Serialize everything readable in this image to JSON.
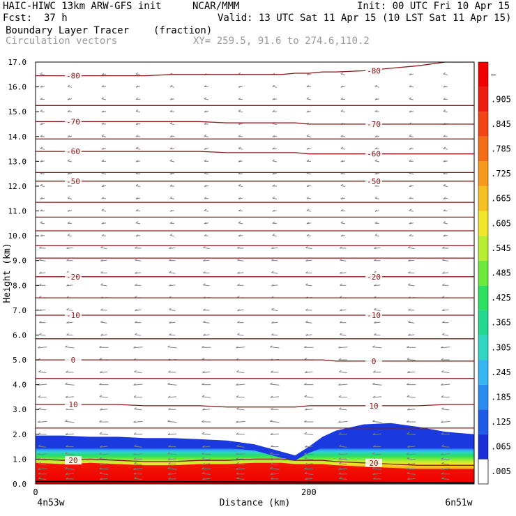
{
  "header": {
    "model": "HAIC-HIWC 13km ARW-GFS init",
    "org": "NCAR/MMM",
    "init": "Init: 00 UTC Fri 10 Apr 15",
    "fcst_label": "Fcst:",
    "fcst_value": "37 h",
    "valid": "Valid: 13 UTC Sat 11 Apr 15 (10 LST Sat 11 Apr 15)",
    "field": "Boundary Layer Tracer",
    "field_units": "(fraction)",
    "vectors": "Circulation vectors",
    "xy": "XY= 259.5, 91.6 to 274.6,110.2"
  },
  "chart_data": {
    "type": "heatmap",
    "xlabel": "Distance (km)",
    "ylabel": "Height (km)",
    "xlim": [
      0,
      321
    ],
    "ylim": [
      0,
      17
    ],
    "x_ticks": [
      {
        "v": 0,
        "label": "0"
      },
      {
        "v": 200,
        "label": "200"
      }
    ],
    "x_endpoints": [
      "4n53w",
      "6n51w"
    ],
    "y_ticks": [
      "0.0",
      "1.0",
      "2.0",
      "3.0",
      "4.0",
      "5.0",
      "6.0",
      "7.0",
      "8.0",
      "9.0",
      "10.0",
      "11.0",
      "12.0",
      "13.0",
      "14.0",
      "15.0",
      "16.0",
      "17.0"
    ],
    "colorbar": {
      "labels": [
        ".005",
        ".065",
        ".125",
        ".185",
        ".245",
        ".305",
        ".365",
        ".425",
        ".485",
        ".545",
        ".605",
        ".665",
        ".725",
        ".785",
        ".845",
        ".905",
        "–"
      ],
      "colors": [
        "#ffffff",
        "#1a2ed8",
        "#1f5ae6",
        "#2a8cf0",
        "#35b6f0",
        "#30d6c2",
        "#24d890",
        "#2ee060",
        "#6ee83c",
        "#b8ee32",
        "#f0e62a",
        "#f6c022",
        "#f69a1c",
        "#f46e18",
        "#f24414",
        "#ee1c10",
        "#f00000"
      ]
    },
    "tracer": {
      "x": [
        0,
        20,
        40,
        60,
        80,
        100,
        120,
        140,
        160,
        180,
        190,
        200,
        210,
        220,
        240,
        260,
        280,
        300,
        321
      ],
      "top_height": [
        1.95,
        1.95,
        1.9,
        1.9,
        1.85,
        1.85,
        1.8,
        1.75,
        1.6,
        1.3,
        1.15,
        1.5,
        1.9,
        2.15,
        2.4,
        2.45,
        2.3,
        2.1,
        2.0
      ]
    },
    "temperature_isotherms": [
      {
        "label": "20",
        "heights": [
          1.0,
          0.95,
          1.0,
          0.95,
          0.9,
          0.9,
          0.95,
          0.95,
          1.0,
          1.0,
          0.95,
          0.95,
          0.95,
          0.9,
          0.85,
          0.8,
          0.75,
          0.75,
          0.75
        ]
      },
      {
        "label": "10",
        "heights": [
          3.2,
          3.2,
          3.2,
          3.2,
          3.15,
          3.15,
          3.15,
          3.1,
          3.1,
          3.1,
          3.1,
          3.15,
          3.15,
          3.15,
          3.15,
          3.15,
          3.15,
          3.2,
          3.2
        ]
      },
      {
        "label": "0",
        "heights": [
          5.0,
          5.0,
          5.0,
          5.0,
          5.0,
          5.0,
          5.0,
          5.0,
          5.0,
          5.0,
          5.0,
          5.0,
          5.0,
          4.95,
          4.95,
          4.95,
          4.95,
          4.95,
          4.95
        ]
      },
      {
        "label": "-10",
        "heights": [
          6.8,
          6.8,
          6.8,
          6.8,
          6.8,
          6.8,
          6.8,
          6.8,
          6.8,
          6.8,
          6.8,
          6.8,
          6.8,
          6.8,
          6.8,
          6.8,
          6.8,
          6.8,
          6.8
        ]
      },
      {
        "label": "-20",
        "heights": [
          8.35,
          8.35,
          8.35,
          8.35,
          8.35,
          8.35,
          8.35,
          8.35,
          8.35,
          8.35,
          8.35,
          8.35,
          8.35,
          8.35,
          8.35,
          8.35,
          8.35,
          8.35,
          8.35
        ]
      },
      {
        "label": "-50",
        "heights": [
          12.2,
          12.2,
          12.2,
          12.2,
          12.2,
          12.2,
          12.2,
          12.2,
          12.2,
          12.2,
          12.2,
          12.2,
          12.2,
          12.2,
          12.2,
          12.2,
          12.2,
          12.2,
          12.2
        ]
      },
      {
        "label": "-60",
        "heights": [
          13.4,
          13.4,
          13.4,
          13.4,
          13.4,
          13.4,
          13.4,
          13.35,
          13.35,
          13.35,
          13.35,
          13.3,
          13.3,
          13.3,
          13.3,
          13.3,
          13.3,
          13.3,
          13.3
        ]
      },
      {
        "label": "-70",
        "heights": [
          14.6,
          14.6,
          14.6,
          14.6,
          14.6,
          14.6,
          14.6,
          14.55,
          14.55,
          14.55,
          14.55,
          14.5,
          14.5,
          14.5,
          14.5,
          14.5,
          14.5,
          14.5,
          14.5
        ]
      },
      {
        "label": "-80",
        "heights": [
          16.45,
          16.45,
          16.45,
          16.45,
          16.45,
          16.5,
          16.5,
          16.5,
          16.5,
          16.5,
          16.55,
          16.55,
          16.6,
          16.6,
          16.65,
          16.75,
          16.85,
          17.0,
          17.0
        ]
      }
    ],
    "unlabeled_isotherm_heights": [
      2.25,
      4.25,
      5.85,
      7.5,
      9.1,
      9.6,
      10.2,
      10.75,
      11.35,
      12.55,
      13.9,
      15.25
    ],
    "vector_x": [
      5,
      25,
      50,
      75,
      100,
      125,
      150,
      175,
      200,
      225,
      250,
      275,
      300
    ],
    "vector_heights": [
      0.2,
      0.4,
      0.6,
      0.8,
      1.0,
      1.2,
      1.5,
      2.0,
      2.5,
      3.0,
      3.5,
      4.0,
      4.5,
      5.0,
      5.5,
      6.0,
      6.5,
      7.0,
      7.5,
      8.0,
      8.5,
      9.0,
      9.5,
      10.0,
      10.5,
      11.0,
      11.5,
      12.0,
      12.5,
      13.0,
      13.5,
      14.0,
      14.5,
      15.0,
      15.5,
      16.0,
      16.5
    ],
    "isotherm_color": "#8b1a1a",
    "vector_color": "#808080"
  }
}
